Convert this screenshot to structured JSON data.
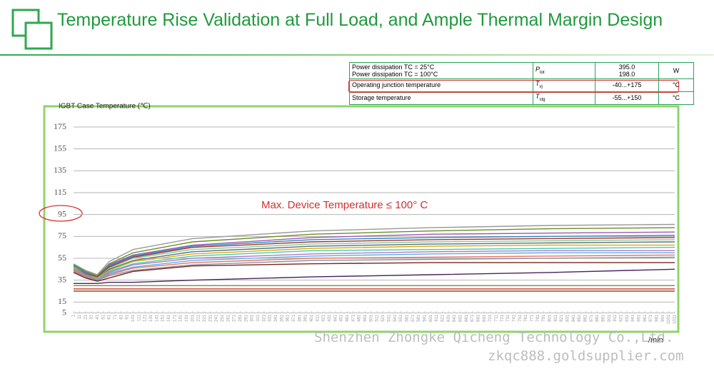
{
  "header": {
    "title": "Temperature Rise Validation at Full Load, and Ample Thermal Margin Design"
  },
  "table": {
    "rows": [
      {
        "param": [
          "Power dissipation TC = 25°C",
          "Power dissipation TC = 100°C"
        ],
        "symbol": "P",
        "sub": "tot",
        "value": [
          "395.0",
          "198.0"
        ],
        "unit": "W"
      },
      {
        "param": [
          "Operating junction temperature"
        ],
        "symbol": "T",
        "sub": "vj",
        "value": [
          "-40...+175"
        ],
        "unit": "°C"
      },
      {
        "param": [
          "Storage temperature"
        ],
        "symbol": "T",
        "sub": "stg",
        "value": [
          "-55...+150"
        ],
        "unit": "°C"
      }
    ]
  },
  "watermark": {
    "company": "Shenzhen Zhongke Qicheng Technology Co.,Ltd.",
    "site": "zkqc888.goldsupplier.com"
  },
  "chart_data": {
    "type": "line",
    "y_label": "IGBT Case Temperature (℃)",
    "x_label": "/min",
    "annotation": "Max. Device Temperature ≤ 100° C",
    "ylim": [
      -5,
      175
    ],
    "yticks": [
      175,
      155,
      135,
      115,
      95,
      75,
      55,
      35,
      15,
      5
    ],
    "xlim": [
      1,
      1011
    ],
    "xticks": [
      1,
      11,
      21,
      31,
      41,
      51,
      61,
      71,
      81,
      91,
      101,
      111,
      121,
      131,
      141,
      151,
      161,
      171,
      181,
      191,
      201,
      211,
      221,
      231,
      241,
      251,
      261,
      271,
      281,
      291,
      301,
      311,
      321,
      331,
      341,
      351,
      361,
      371,
      381,
      391,
      401,
      411,
      421,
      431,
      441,
      451,
      461,
      471,
      481,
      491,
      501,
      511,
      521,
      531,
      541,
      551,
      561,
      571,
      581,
      591,
      601,
      611,
      621,
      631,
      641,
      651,
      661,
      671,
      681,
      691,
      701,
      711,
      721,
      731,
      741,
      751,
      761,
      771,
      781,
      791,
      801,
      811,
      821,
      831,
      841,
      851,
      861,
      871,
      881,
      891,
      901,
      911,
      921,
      931,
      941,
      951,
      961,
      971,
      981,
      991,
      1001,
      1011
    ],
    "grid": true,
    "x": [
      1,
      21,
      41,
      61,
      101,
      201,
      401,
      601,
      801,
      1011
    ],
    "series": [
      {
        "color": "#999999",
        "values": [
          50,
          44,
          40,
          52,
          63,
          73,
          80,
          83,
          85,
          86
        ]
      },
      {
        "color": "#6b8e23",
        "values": [
          49,
          43,
          39,
          50,
          60,
          70,
          77,
          80,
          82,
          83
        ]
      },
      {
        "color": "#9b59b6",
        "values": [
          48,
          42,
          38,
          49,
          58,
          67,
          74,
          77,
          78,
          79
        ]
      },
      {
        "color": "#2e86c1",
        "values": [
          48,
          42,
          38,
          48,
          57,
          66,
          72,
          74,
          75,
          76
        ]
      },
      {
        "color": "#a93226",
        "values": [
          47,
          41,
          38,
          47,
          56,
          65,
          70,
          72,
          73,
          74
        ]
      },
      {
        "color": "#7dcea0",
        "values": [
          47,
          41,
          37,
          46,
          55,
          63,
          68,
          70,
          71,
          72
        ]
      },
      {
        "color": "#5d6d7e",
        "values": [
          46,
          41,
          37,
          45,
          53,
          61,
          66,
          68,
          69,
          70
        ]
      },
      {
        "color": "#d4ac0d",
        "values": [
          46,
          40,
          37,
          44,
          52,
          59,
          64,
          66,
          67,
          67
        ]
      },
      {
        "color": "#48c9b0",
        "values": [
          45,
          40,
          36,
          43,
          50,
          57,
          62,
          63,
          64,
          65
        ]
      },
      {
        "color": "#af7ac5",
        "values": [
          45,
          40,
          36,
          42,
          49,
          55,
          59,
          61,
          62,
          62
        ]
      },
      {
        "color": "#5dade2",
        "values": [
          44,
          39,
          36,
          41,
          47,
          53,
          57,
          59,
          60,
          60
        ]
      },
      {
        "color": "#ec7063",
        "values": [
          44,
          39,
          35,
          40,
          46,
          51,
          55,
          56,
          57,
          58
        ]
      },
      {
        "color": "#85929e",
        "values": [
          43,
          38,
          35,
          39,
          44,
          49,
          53,
          54,
          55,
          56
        ]
      },
      {
        "color": "#7b241c",
        "values": [
          42,
          37,
          34,
          37,
          43,
          48,
          50,
          51,
          51,
          51
        ]
      },
      {
        "color": "#4a235a",
        "values": [
          32,
          32,
          32,
          33,
          33,
          35,
          38,
          40,
          42,
          45
        ]
      },
      {
        "color": "#7d8c3a",
        "values": [
          30,
          30,
          30,
          30,
          30,
          30,
          30,
          30,
          30,
          30
        ]
      },
      {
        "color": "#c0392b",
        "values": [
          27,
          27,
          27,
          27,
          27,
          27,
          27,
          27,
          27,
          27
        ]
      },
      {
        "color": "#935116",
        "values": [
          25,
          25,
          25,
          25,
          25,
          25,
          25,
          25,
          25,
          25
        ]
      }
    ]
  }
}
